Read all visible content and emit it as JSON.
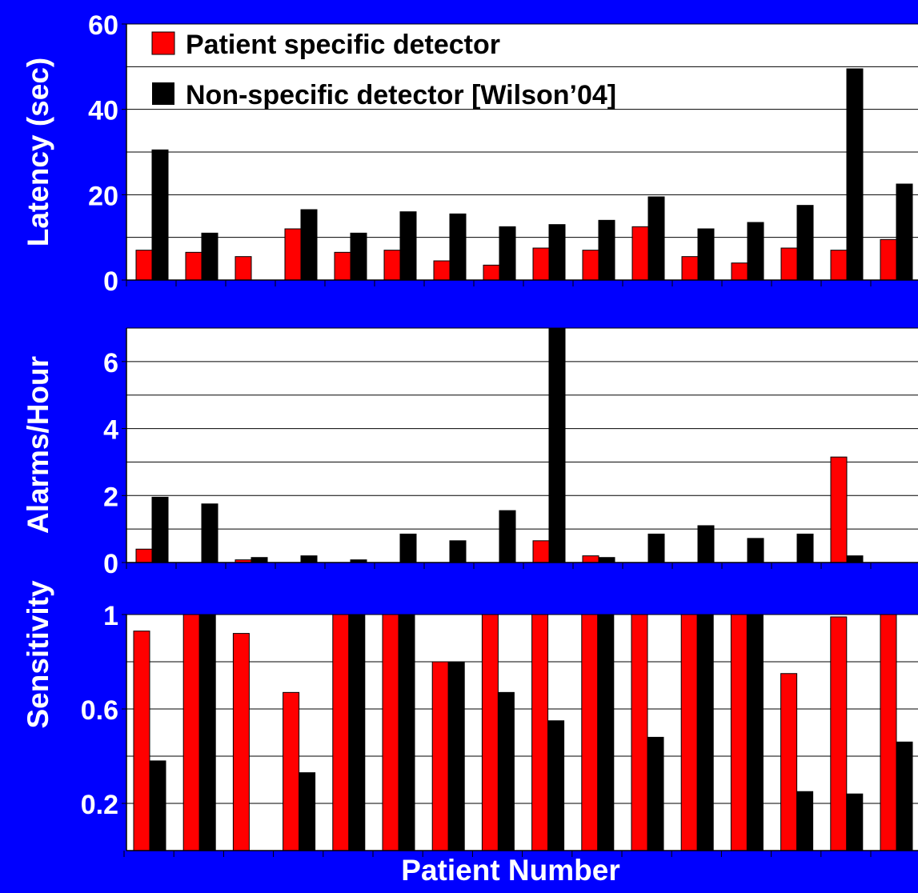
{
  "xlabel": "Patient Number",
  "legend": {
    "position": "top-left",
    "entries": [
      "Patient specific detector",
      "Non-specific detector [Wilson’04]"
    ]
  },
  "colors": {
    "background": "#0000ff",
    "plot_area": "#ffffff",
    "patient_specific": "#ff0000",
    "non_specific": "#000000"
  },
  "chart_data": [
    {
      "type": "bar",
      "ylabel": "Latency (sec)",
      "ylim": [
        0,
        60
      ],
      "tick_values": [
        0,
        20,
        40,
        60
      ],
      "tick_labels": [
        "0",
        "20",
        "40",
        "60"
      ],
      "grid": true,
      "series": [
        {
          "name": "Patient specific detector",
          "values": [
            7,
            6.5,
            5.5,
            12,
            6.5,
            7,
            4.5,
            3.5,
            7.5,
            7,
            12.5,
            5.5,
            4,
            7.5,
            7,
            9.5
          ]
        },
        {
          "name": "Non-specific detector [Wilson’04]",
          "values": [
            30.5,
            11,
            null,
            16.5,
            11,
            16,
            15.5,
            12.5,
            13,
            14,
            19.5,
            12,
            13.5,
            17.5,
            49.5,
            22.5
          ]
        }
      ]
    },
    {
      "type": "bar",
      "ylabel": "Alarms/Hour",
      "ylim": [
        0,
        7
      ],
      "tick_values": [
        0,
        2,
        4,
        6
      ],
      "tick_labels": [
        "0",
        "2",
        "4",
        "6"
      ],
      "grid": true,
      "series": [
        {
          "name": "Patient specific detector",
          "values": [
            0.4,
            0,
            0.08,
            0,
            0,
            0,
            0,
            0,
            0.65,
            0.2,
            0,
            0,
            0,
            0,
            3.15,
            0
          ]
        },
        {
          "name": "Non-specific detector [Wilson’04]",
          "values": [
            1.95,
            1.75,
            0.15,
            0.2,
            0.08,
            0.85,
            0.65,
            1.55,
            7.0,
            0.15,
            0.85,
            1.1,
            0.72,
            0.85,
            0.2,
            0
          ]
        }
      ]
    },
    {
      "type": "bar",
      "ylabel": "Sensitivity",
      "ylim": [
        0,
        1
      ],
      "tick_values": [
        0.2,
        0.6,
        1
      ],
      "tick_labels": [
        "0.2",
        "0.6",
        "1"
      ],
      "grid": true,
      "series": [
        {
          "name": "Patient specific detector",
          "values": [
            0.93,
            1,
            0.92,
            0.67,
            1,
            1,
            0.8,
            1,
            1,
            1,
            1,
            1,
            1,
            0.75,
            0.99,
            1
          ]
        },
        {
          "name": "Non-specific detector [Wilson’04]",
          "values": [
            0.38,
            1,
            null,
            0.33,
            1,
            1,
            0.8,
            0.67,
            0.55,
            1,
            0.48,
            1,
            1,
            0.25,
            0.24,
            0.46
          ]
        }
      ]
    }
  ]
}
